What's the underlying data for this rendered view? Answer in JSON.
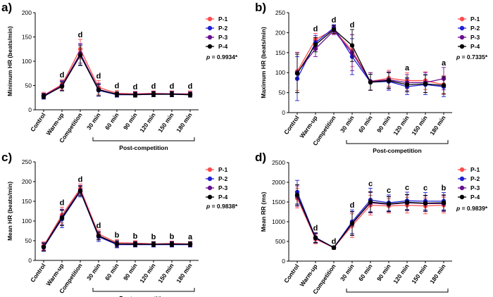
{
  "chart_data": [
    {
      "type": "line",
      "panel": "a)",
      "ylabel": "Minimum HR (beats/min)",
      "ylim": [
        0,
        200
      ],
      "yticks": [
        0,
        50,
        100,
        150,
        200
      ],
      "categories": [
        "Control",
        "Warm-up",
        "Competition",
        "30 min",
        "60 min",
        "90 min",
        "120 min",
        "150 min",
        "180 min"
      ],
      "post_label": "Post-competition",
      "p_prefix": "p",
      "p_value": "= 0.9934*",
      "sig": [
        "",
        "d",
        "d",
        "d",
        "d",
        "d",
        "d",
        "d",
        "d"
      ],
      "series": [
        {
          "name": "P-1",
          "color": "#ff4d4d",
          "values": [
            30,
            52,
            125,
            46,
            34,
            33,
            34,
            33,
            33
          ],
          "err": [
            6,
            10,
            20,
            14,
            6,
            5,
            5,
            6,
            6
          ]
        },
        {
          "name": "P-2",
          "color": "#1f1fd6",
          "values": [
            27,
            49,
            113,
            40,
            31,
            31,
            32,
            32,
            31
          ],
          "err": [
            5,
            10,
            22,
            12,
            5,
            5,
            5,
            5,
            5
          ]
        },
        {
          "name": "P-3",
          "color": "#6a0d91",
          "values": [
            29,
            50,
            116,
            42,
            32,
            32,
            33,
            33,
            32
          ],
          "err": [
            5,
            10,
            20,
            13,
            5,
            5,
            5,
            5,
            5
          ]
        },
        {
          "name": "P-4",
          "color": "#000000",
          "values": [
            28,
            48,
            112,
            41,
            32,
            31,
            32,
            32,
            31
          ],
          "err": [
            5,
            9,
            20,
            12,
            5,
            5,
            5,
            5,
            5
          ]
        }
      ]
    },
    {
      "type": "line",
      "panel": "b)",
      "ylabel": "Maximum HR (beats/min)",
      "ylim": [
        0,
        250
      ],
      "yticks": [
        0,
        50,
        100,
        150,
        200,
        250
      ],
      "categories": [
        "Control",
        "Warm-up",
        "Competition",
        "30 min",
        "60 min",
        "90 min",
        "120 min",
        "150 min",
        "180 min"
      ],
      "post_label": "Post-competition",
      "p_prefix": "p",
      "p_value": "= 0.7335*",
      "sig": [
        "",
        "d",
        "d",
        "d",
        "",
        "",
        "a",
        "",
        "a"
      ],
      "series": [
        {
          "name": "P-1",
          "color": "#ff4d4d",
          "values": [
            103,
            183,
            207,
            155,
            78,
            86,
            80,
            80,
            70
          ],
          "err": [
            48,
            15,
            10,
            40,
            22,
            20,
            20,
            22,
            22
          ]
        },
        {
          "name": "P-2",
          "color": "#1f1fd6",
          "values": [
            85,
            175,
            212,
            140,
            76,
            78,
            65,
            70,
            65
          ],
          "err": [
            55,
            18,
            8,
            45,
            20,
            22,
            20,
            25,
            25
          ]
        },
        {
          "name": "P-3",
          "color": "#6a0d91",
          "values": [
            100,
            160,
            205,
            150,
            78,
            82,
            75,
            75,
            85
          ],
          "err": [
            50,
            20,
            10,
            45,
            22,
            20,
            20,
            25,
            28
          ]
        },
        {
          "name": "P-4",
          "color": "#000000",
          "values": [
            98,
            170,
            208,
            168,
            76,
            80,
            70,
            72,
            68
          ],
          "err": [
            48,
            18,
            10,
            40,
            20,
            20,
            18,
            22,
            22
          ]
        }
      ]
    },
    {
      "type": "line",
      "panel": "c)",
      "ylabel": "Mean HR (beats/min)",
      "ylim": [
        0,
        250
      ],
      "yticks": [
        0,
        50,
        100,
        150,
        200,
        250
      ],
      "categories": [
        "Control",
        "Warm-up",
        "Competition",
        "30 min",
        "60 min",
        "90 min",
        "120 min",
        "150 min",
        "180 min"
      ],
      "post_label": "Post-competition",
      "p_prefix": "p",
      "p_value": "= 0.9838*",
      "sig": [
        "",
        "d",
        "d",
        "d",
        "b",
        "b",
        "b",
        "b",
        "a"
      ],
      "series": [
        {
          "name": "P-1",
          "color": "#ff4d4d",
          "values": [
            37,
            115,
            182,
            67,
            45,
            44,
            42,
            43,
            42
          ],
          "err": [
            10,
            20,
            12,
            10,
            8,
            6,
            6,
            6,
            6
          ]
        },
        {
          "name": "P-2",
          "color": "#1f1fd6",
          "values": [
            33,
            105,
            175,
            60,
            40,
            40,
            40,
            40,
            40
          ],
          "err": [
            10,
            22,
            14,
            12,
            8,
            6,
            6,
            6,
            6
          ]
        },
        {
          "name": "P-3",
          "color": "#6a0d91",
          "values": [
            35,
            110,
            178,
            63,
            42,
            42,
            41,
            42,
            41
          ],
          "err": [
            10,
            20,
            12,
            10,
            8,
            6,
            6,
            6,
            6
          ]
        },
        {
          "name": "P-4",
          "color": "#000000",
          "values": [
            34,
            108,
            176,
            62,
            42,
            41,
            41,
            41,
            41
          ],
          "err": [
            10,
            20,
            12,
            10,
            8,
            6,
            6,
            6,
            6
          ]
        }
      ]
    },
    {
      "type": "line",
      "panel": "d)",
      "ylabel": "Mean RR (ms)",
      "ylim": [
        0,
        2500
      ],
      "yticks": [
        0,
        500,
        1000,
        1500,
        2000,
        2500
      ],
      "categories": [
        "Control",
        "Warm-up",
        "Competition",
        "30 min",
        "60 min",
        "90 min",
        "120 min",
        "150 min",
        "180 min"
      ],
      "post_label": "Post-competition",
      "p_prefix": "p",
      "p_value": "= 0.9839*",
      "sig": [
        "",
        "d",
        "d",
        "d",
        "c",
        "c",
        "c",
        "c",
        "b"
      ],
      "series": [
        {
          "name": "P-1",
          "color": "#ff4d4d",
          "values": [
            1600,
            560,
            340,
            900,
            1420,
            1400,
            1420,
            1400,
            1420
          ],
          "err": [
            250,
            120,
            40,
            300,
            250,
            180,
            200,
            200,
            200
          ]
        },
        {
          "name": "P-2",
          "color": "#1f1fd6",
          "values": [
            1750,
            600,
            345,
            1000,
            1550,
            1480,
            1530,
            1520,
            1520
          ],
          "err": [
            300,
            120,
            40,
            300,
            300,
            200,
            220,
            220,
            220
          ]
        },
        {
          "name": "P-3",
          "color": "#6a0d91",
          "values": [
            1650,
            580,
            340,
            950,
            1480,
            1440,
            1480,
            1460,
            1460
          ],
          "err": [
            260,
            120,
            40,
            300,
            260,
            190,
            200,
            200,
            200
          ]
        },
        {
          "name": "P-4",
          "color": "#000000",
          "values": [
            1680,
            590,
            342,
            960,
            1500,
            1450,
            1490,
            1470,
            1480
          ],
          "err": [
            260,
            120,
            40,
            300,
            260,
            190,
            200,
            200,
            200
          ]
        }
      ]
    }
  ]
}
